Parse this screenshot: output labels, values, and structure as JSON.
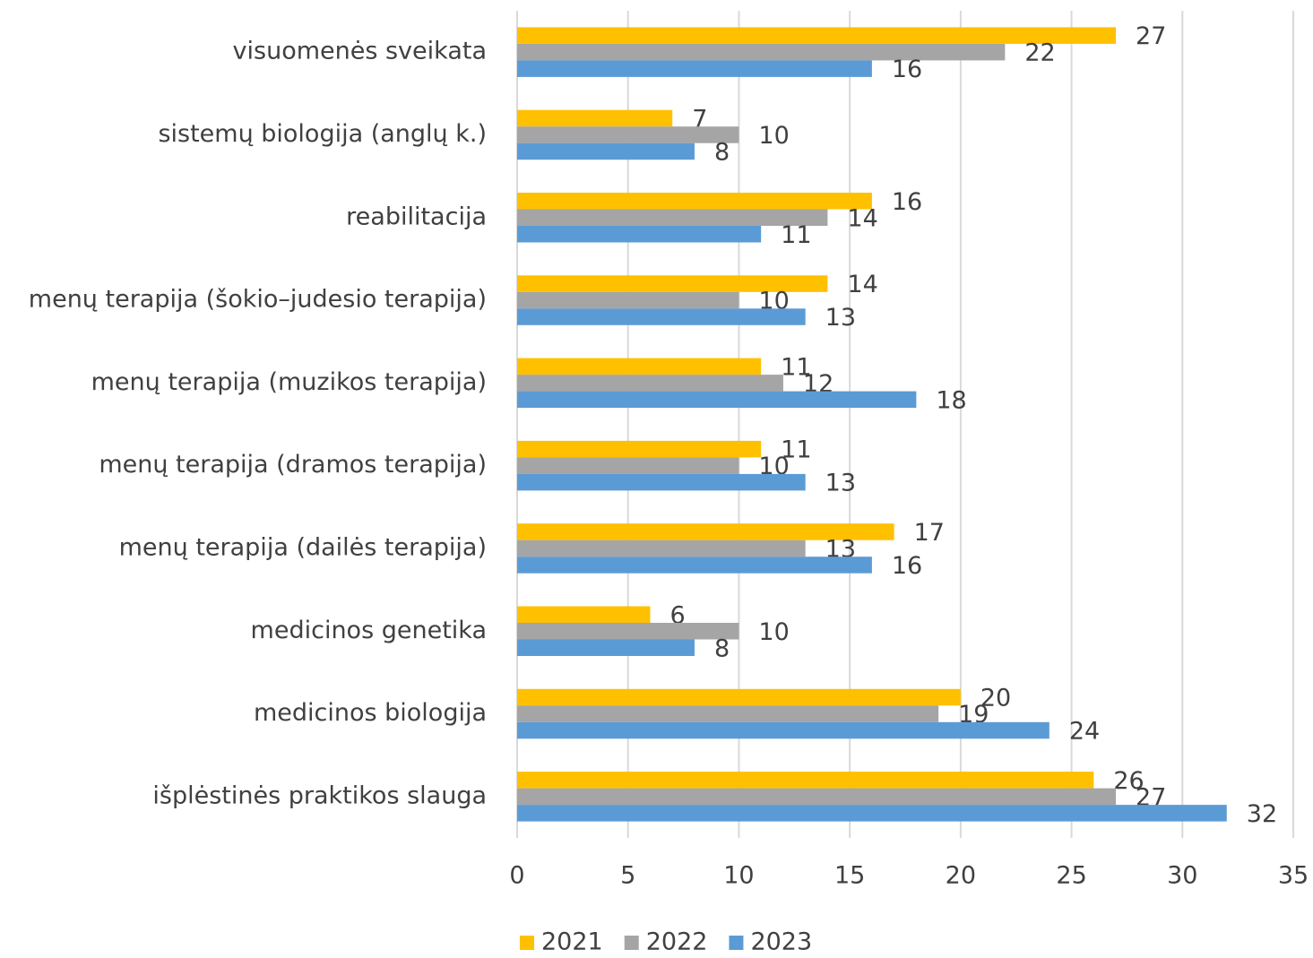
{
  "chart_data": {
    "type": "bar",
    "orientation": "horizontal",
    "categories": [
      "visuomenės sveikata",
      "sistemų biologija (anglų k.)",
      "reabilitacija",
      "menų terapija (šokio–judesio terapija)",
      "menų terapija (muzikos terapija)",
      "menų terapija (dramos terapija)",
      "menų terapija (dailės terapija)",
      "medicinos genetika",
      "medicinos biologija",
      "išplėstinės praktikos slauga"
    ],
    "series": [
      {
        "name": "2021",
        "color": "#ffc000",
        "values": [
          27,
          7,
          16,
          14,
          11,
          11,
          17,
          6,
          20,
          26
        ]
      },
      {
        "name": "2022",
        "color": "#a5a5a5",
        "values": [
          22,
          10,
          14,
          10,
          12,
          10,
          13,
          10,
          19,
          27
        ]
      },
      {
        "name": "2023",
        "color": "#5b9bd5",
        "values": [
          16,
          8,
          11,
          13,
          18,
          13,
          16,
          8,
          24,
          32
        ]
      }
    ],
    "xlim": [
      0,
      35
    ],
    "xticks": [
      0,
      5,
      10,
      15,
      20,
      25,
      30,
      35
    ],
    "grid": true,
    "legend": "bottom"
  }
}
